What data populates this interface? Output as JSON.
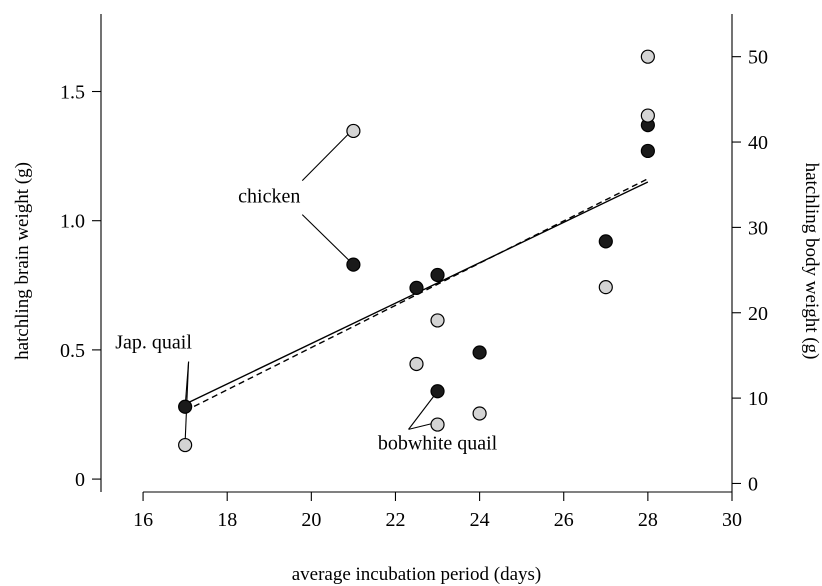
{
  "chart_data": {
    "type": "scatter",
    "xlabel": "average incubation period (days)",
    "ylabel": "hatchling brain weight (g)",
    "y2label": "hatchling body weight (g)",
    "xlim": [
      15,
      30
    ],
    "ylim": [
      -0.05,
      1.8
    ],
    "y2lim": [
      -1.0,
      55.0
    ],
    "x_ticks": [
      16,
      18,
      20,
      22,
      24,
      26,
      28,
      30
    ],
    "y_ticks": [
      0,
      0.5,
      1.0,
      1.5
    ],
    "y_tick_labels": [
      "0",
      "0.5",
      "1.0",
      "1.5"
    ],
    "y2_ticks": [
      0,
      10,
      20,
      30,
      40,
      50
    ],
    "grid": false,
    "legend": "none",
    "series": [
      {
        "axis": "left",
        "color": "#1a1a1a",
        "points": [
          {
            "x": 17,
            "y": 0.28
          },
          {
            "x": 21,
            "y": 0.83
          },
          {
            "x": 22.5,
            "y": 0.74
          },
          {
            "x": 23,
            "y": 0.79
          },
          {
            "x": 23,
            "y": 0.34
          },
          {
            "x": 24,
            "y": 0.49
          },
          {
            "x": 27,
            "y": 0.92
          },
          {
            "x": 28,
            "y": 1.37
          },
          {
            "x": 28,
            "y": 1.27
          }
        ]
      },
      {
        "axis": "right",
        "color": "#d4d4d4",
        "points": [
          {
            "x": 17,
            "y": 4.5
          },
          {
            "x": 21,
            "y": 41.3
          },
          {
            "x": 22.5,
            "y": 14.0
          },
          {
            "x": 23,
            "y": 19.1
          },
          {
            "x": 23,
            "y": 6.9
          },
          {
            "x": 24,
            "y": 8.2
          },
          {
            "x": 27,
            "y": 23.0
          },
          {
            "x": 28,
            "y": 43.1
          },
          {
            "x": 28,
            "y": 50.0
          }
        ]
      }
    ],
    "fit_lines": [
      {
        "style": "solid",
        "axis": "left",
        "x": [
          17,
          28
        ],
        "y": [
          0.29,
          1.15
        ]
      },
      {
        "style": "dashed",
        "axis": "right",
        "x": [
          17,
          28
        ],
        "y": [
          8.5,
          35.7
        ]
      }
    ],
    "annotations": [
      {
        "text": "chicken",
        "x": 19.0,
        "y": 1.07,
        "targets": [
          {
            "x": 21,
            "y": 1.355
          },
          {
            "x": 21,
            "y": 0.83
          }
        ]
      },
      {
        "text": "Jap. quail",
        "x": 16.25,
        "y": 0.505,
        "targets": [
          {
            "x": 17,
            "y": 0.28
          },
          {
            "x": 17,
            "y": 0.145
          }
        ]
      },
      {
        "text": "bobwhite quail",
        "x": 23.0,
        "y": 0.115,
        "targets": [
          {
            "x": 23,
            "y": 0.34
          },
          {
            "x": 23,
            "y": 0.22
          }
        ]
      }
    ]
  }
}
